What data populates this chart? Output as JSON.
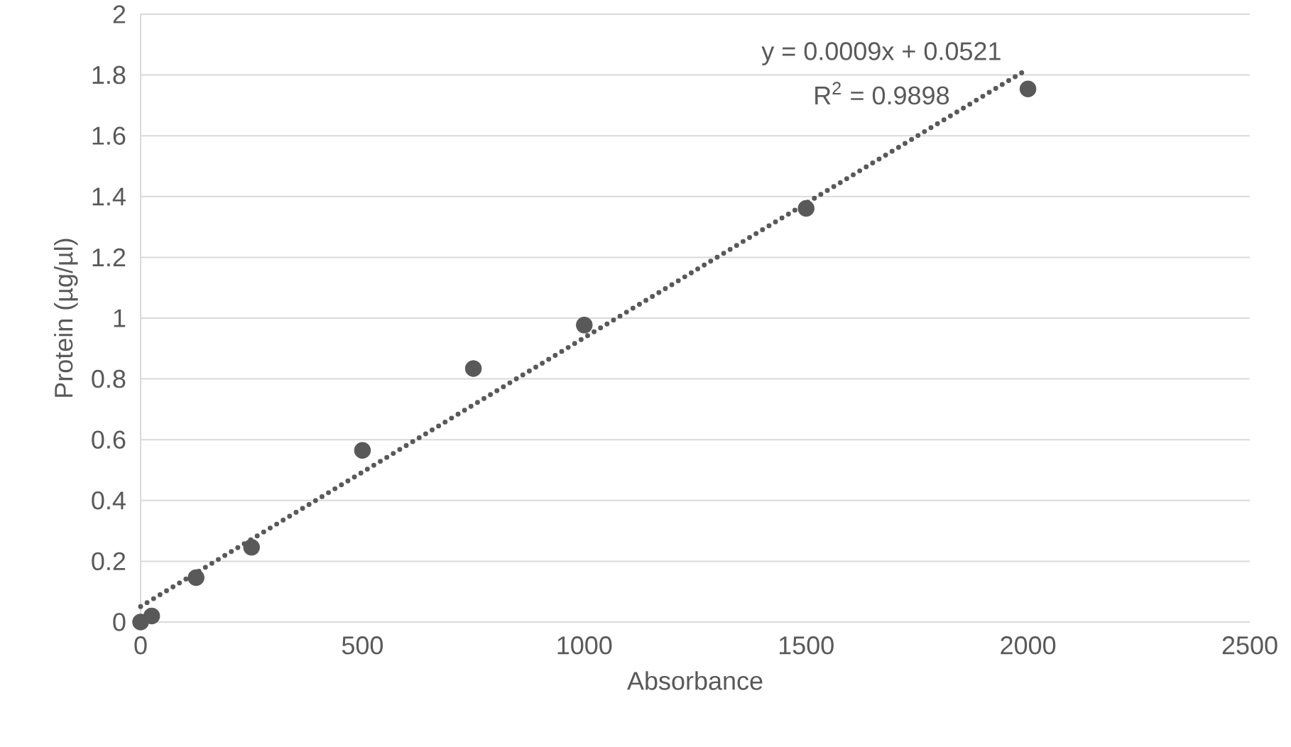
{
  "chart_data": {
    "type": "scatter",
    "xlabel": "Absorbance",
    "ylabel": "Protein (µg/µl)",
    "xlim": [
      0,
      2500
    ],
    "xticks": [
      0,
      500,
      1000,
      1500,
      2000,
      2500
    ],
    "ylim": [
      0,
      2
    ],
    "yticks": [
      0,
      0.2,
      0.4,
      0.6,
      0.8,
      1,
      1.2,
      1.4,
      1.6,
      1.8,
      2
    ],
    "grid": "y",
    "marker": "circle",
    "series": [
      {
        "color": "#595959",
        "x": [
          0,
          25,
          125,
          250,
          500,
          750,
          1000,
          1500,
          2000
        ],
        "values": [
          0,
          0.02,
          0.146,
          0.246,
          0.565,
          0.834,
          0.977,
          1.361,
          1.754
        ]
      },
      {
        "type": "line",
        "color": "#595959",
        "line_style": "dotted",
        "marker": "none",
        "x": [
          0,
          2000
        ],
        "values": [
          0.051,
          1.82
        ]
      }
    ],
    "annotations": [
      "y = 0.0009x + 0.0521",
      "R$^{2}$ = 0.9898"
    ]
  }
}
